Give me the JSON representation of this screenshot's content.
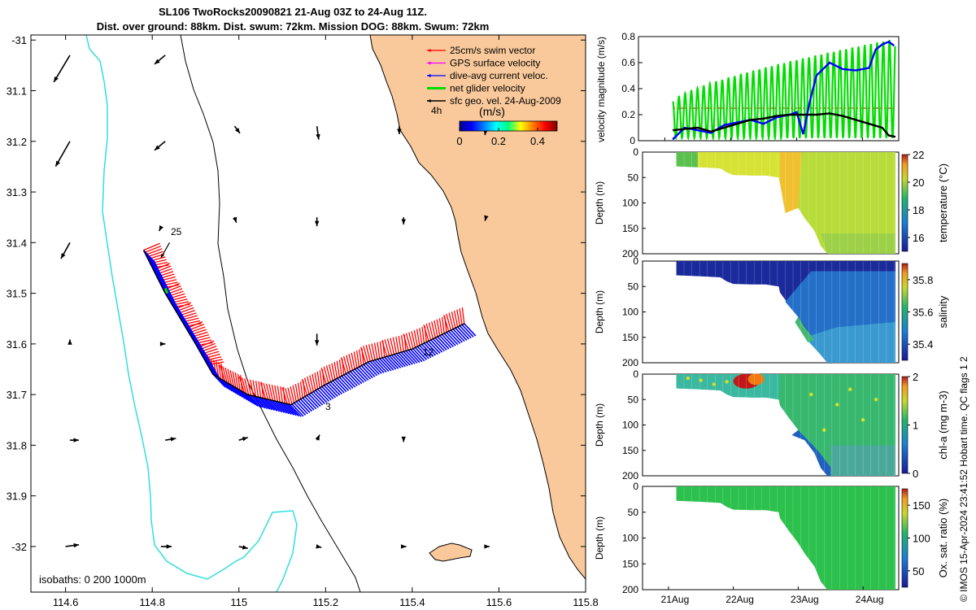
{
  "title": {
    "line1": "SL106 TwoRocks20090821 21-Aug 03Z to 24-Aug 11Z.",
    "line2": "Dist. over ground: 88km. Dist. swum: 72km. Mission DOG: 88km. Swum: 72km"
  },
  "credit": "© IMOS 15-Apr-2024 23:41:52 Hobart time. QC flags 1  2",
  "colors": {
    "land": "#f9c99b",
    "cyan_isobath": "#33dddd",
    "red": "#ff0000",
    "magenta": "#ff00ff",
    "blue": "#0000ff",
    "green": "#00dd00",
    "black": "#000000"
  },
  "chart_data": [
    {
      "type": "map",
      "name": "track-map",
      "x_ticks": [
        "114.6",
        "114.8",
        "115",
        "115.2",
        "115.4",
        "115.6",
        "115.8"
      ],
      "y_ticks": [
        "-31",
        "31.1",
        "31.2",
        "31.3",
        "31.4",
        "31.5",
        "31.6",
        "31.7",
        "31.8",
        "31.9",
        "-32"
      ],
      "xlim": [
        114.52,
        115.8
      ],
      "ylim": [
        -32.09,
        -30.99
      ],
      "legend": [
        {
          "label": "25cm/s swim vector",
          "color": "#ff0000"
        },
        {
          "label": "GPS surface velocity",
          "color": "#ff00ff"
        },
        {
          "label": "dive-avg current veloc.",
          "color": "#0000ff"
        },
        {
          "label": "net glider velocity",
          "color": "#00dd00"
        },
        {
          "label": "sfc geo. vel. 24-Aug-2009",
          "color": "#000000"
        }
      ],
      "colorbar": {
        "label": "(m/s)",
        "ticks": [
          "0",
          "0.2",
          "0.4"
        ],
        "range": [
          0,
          0.5
        ]
      },
      "annotations": [
        "4h",
        "25",
        "2",
        "3",
        "12"
      ],
      "isobath_label": "isobaths: 0   200  1000m",
      "glider_track": [
        {
          "lon": 114.78,
          "lat": -31.415
        },
        {
          "lon": 114.83,
          "lat": -31.5
        },
        {
          "lon": 114.9,
          "lat": -31.6
        },
        {
          "lon": 114.94,
          "lat": -31.66
        },
        {
          "lon": 115.02,
          "lat": -31.7
        },
        {
          "lon": 115.12,
          "lat": -31.72
        },
        {
          "lon": 115.2,
          "lat": -31.68
        },
        {
          "lon": 115.3,
          "lat": -31.635
        },
        {
          "lon": 115.4,
          "lat": -31.61
        },
        {
          "lon": 115.52,
          "lat": -31.56
        }
      ],
      "sfc_vectors": [
        {
          "lon": 114.61,
          "lat": -31.03,
          "u": -0.18,
          "v": -0.3
        },
        {
          "lon": 114.83,
          "lat": -31.03,
          "u": -0.12,
          "v": -0.1
        },
        {
          "lon": 114.61,
          "lat": -31.2,
          "u": -0.16,
          "v": -0.28
        },
        {
          "lon": 114.83,
          "lat": -31.2,
          "u": -0.12,
          "v": -0.1
        },
        {
          "lon": 114.99,
          "lat": -31.17,
          "u": 0.06,
          "v": -0.08
        },
        {
          "lon": 115.18,
          "lat": -31.17,
          "u": 0.02,
          "v": -0.15
        },
        {
          "lon": 115.37,
          "lat": -31.17,
          "u": 0.0,
          "v": -0.09
        },
        {
          "lon": 115.57,
          "lat": -31.17,
          "u": -0.01,
          "v": -0.1
        },
        {
          "lon": 114.61,
          "lat": -31.4,
          "u": -0.1,
          "v": -0.18
        },
        {
          "lon": 114.82,
          "lat": -31.37,
          "u": -0.02,
          "v": -0.04
        },
        {
          "lon": 114.99,
          "lat": -31.35,
          "u": 0.02,
          "v": -0.06
        },
        {
          "lon": 115.18,
          "lat": -31.35,
          "u": 0.0,
          "v": -0.1
        },
        {
          "lon": 115.38,
          "lat": -31.35,
          "u": 0.0,
          "v": -0.08
        },
        {
          "lon": 115.57,
          "lat": -31.35,
          "u": -0.01,
          "v": -0.04
        },
        {
          "lon": 114.61,
          "lat": -31.6,
          "u": 0.0,
          "v": 0.05
        },
        {
          "lon": 114.82,
          "lat": -31.6,
          "u": 0.05,
          "v": 0.0
        },
        {
          "lon": 115.18,
          "lat": -31.58,
          "u": 0.0,
          "v": -0.13
        },
        {
          "lon": 114.61,
          "lat": -31.79,
          "u": 0.1,
          "v": 0.0
        },
        {
          "lon": 114.83,
          "lat": -31.79,
          "u": 0.12,
          "v": 0.02
        },
        {
          "lon": 115.0,
          "lat": -31.79,
          "u": 0.1,
          "v": 0.03
        },
        {
          "lon": 115.18,
          "lat": -31.79,
          "u": 0.03,
          "v": 0.06
        },
        {
          "lon": 115.38,
          "lat": -31.79,
          "u": 0.0,
          "v": -0.02
        },
        {
          "lon": 114.6,
          "lat": -32.0,
          "u": 0.15,
          "v": 0.02
        },
        {
          "lon": 114.82,
          "lat": -32.0,
          "u": 0.12,
          "v": 0.0
        },
        {
          "lon": 115.0,
          "lat": -32.0,
          "u": 0.1,
          "v": -0.02
        },
        {
          "lon": 115.18,
          "lat": -32.0,
          "u": 0.05,
          "v": -0.01
        },
        {
          "lon": 115.38,
          "lat": -32.0,
          "u": 0.03,
          "v": 0.0
        },
        {
          "lon": 115.57,
          "lat": -32.0,
          "u": 0.04,
          "v": 0.0
        }
      ]
    },
    {
      "type": "line",
      "name": "velocity-magnitude",
      "ylabel": "velocity magnitude (m/s)",
      "y_ticks": [
        "0",
        "0.2",
        "0.4",
        "0.6",
        "0.8"
      ],
      "ylim": [
        0,
        0.8
      ],
      "x_ticks": [
        "21Aug",
        "22Aug",
        "23Aug",
        "24Aug"
      ],
      "xlim": [
        20.6,
        24.55
      ],
      "swim_speed": 0.25,
      "series": [
        {
          "name": "dive-avg current veloc.",
          "color": "#0000ff",
          "t": [
            21.12,
            21.3,
            21.5,
            21.7,
            21.9,
            22.1,
            22.3,
            22.5,
            22.7,
            22.9,
            23.0,
            23.1,
            23.2,
            23.3,
            23.5,
            23.7,
            23.9,
            24.1,
            24.2,
            24.3,
            24.4,
            24.48
          ],
          "v": [
            0.01,
            0.1,
            0.08,
            0.06,
            0.12,
            0.14,
            0.16,
            0.13,
            0.18,
            0.2,
            0.22,
            0.05,
            0.3,
            0.5,
            0.6,
            0.55,
            0.54,
            0.56,
            0.7,
            0.74,
            0.76,
            0.73
          ]
        },
        {
          "name": "sfc geo. vel.",
          "color": "#000000",
          "t": [
            21.12,
            21.3,
            21.5,
            21.7,
            21.9,
            22.1,
            22.3,
            22.5,
            22.7,
            22.9,
            23.1,
            23.3,
            23.5,
            23.7,
            23.9,
            24.1,
            24.3,
            24.4,
            24.5
          ],
          "v": [
            0.08,
            0.09,
            0.1,
            0.07,
            0.1,
            0.13,
            0.16,
            0.17,
            0.19,
            0.2,
            0.2,
            0.2,
            0.21,
            0.19,
            0.16,
            0.13,
            0.1,
            0.04,
            0.03
          ]
        }
      ],
      "oscillating_series": {
        "name": "net glider velocity",
        "color": "#00dd00",
        "t_start": 21.12,
        "t_end": 24.5,
        "period": 0.094,
        "low": 0.02,
        "high_start": 0.3,
        "high_end": 0.78
      }
    },
    {
      "type": "section",
      "name": "temperature",
      "ylabel": "Depth (m)",
      "colorbar_label": "temperature (°C)",
      "colorbar_ticks": [
        "16",
        "18",
        "20",
        "22"
      ],
      "crange": [
        15,
        22
      ],
      "y_ticks": [
        "0",
        "50",
        "100",
        "150",
        "200"
      ],
      "ylim": [
        0,
        200
      ]
    },
    {
      "type": "section",
      "name": "salinity",
      "ylabel": "Depth (m)",
      "colorbar_label": "salinity",
      "colorbar_ticks": [
        "35.4",
        "35.6",
        "35.8"
      ],
      "crange": [
        35.3,
        35.9
      ],
      "y_ticks": [
        "0",
        "50",
        "100",
        "150",
        "200"
      ],
      "ylim": [
        0,
        200
      ]
    },
    {
      "type": "section",
      "name": "chl-a",
      "ylabel": "Depth (m)",
      "colorbar_label": "chl-a (mg m-3)",
      "colorbar_ticks": [
        "0",
        "1",
        "2"
      ],
      "crange": [
        0,
        2
      ],
      "y_ticks": [
        "0",
        "50",
        "100",
        "150",
        "200"
      ],
      "ylim": [
        0,
        200
      ]
    },
    {
      "type": "section",
      "name": "oxygen-saturation",
      "ylabel": "Depth (m)",
      "colorbar_label": "Ox. sat. ratio (%)",
      "colorbar_ticks": [
        "50",
        "100",
        "150"
      ],
      "crange": [
        25,
        175
      ],
      "y_ticks": [
        "0",
        "50",
        "100",
        "150",
        "200"
      ],
      "ylim": [
        0,
        200
      ],
      "x_ticks": [
        "21Aug",
        "22Aug",
        "23Aug",
        "24Aug"
      ]
    }
  ]
}
